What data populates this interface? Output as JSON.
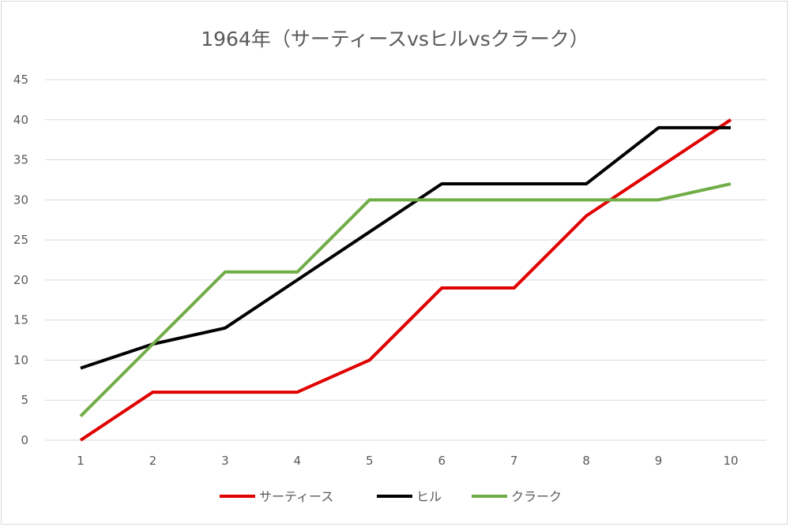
{
  "chart_data": {
    "type": "line",
    "title": "1964年（サーティースvsヒルvsクラーク）",
    "xlabel": "",
    "ylabel": "",
    "x": [
      1,
      2,
      3,
      4,
      5,
      6,
      7,
      8,
      9,
      10
    ],
    "ylim": [
      0,
      45
    ],
    "yticks": [
      0,
      5,
      10,
      15,
      20,
      25,
      30,
      35,
      40,
      45
    ],
    "grid": true,
    "legend_position": "bottom",
    "series": [
      {
        "name": "サーティース",
        "color": "#e00000",
        "values": [
          0,
          6,
          6,
          6,
          10,
          19,
          19,
          28,
          34,
          40
        ]
      },
      {
        "name": "ヒル",
        "color": "#000000",
        "values": [
          9,
          12,
          14,
          20,
          26,
          32,
          32,
          32,
          39,
          39
        ]
      },
      {
        "name": "クラーク",
        "color": "#70ad47",
        "values": [
          3,
          12,
          21,
          21,
          30,
          30,
          30,
          30,
          30,
          32
        ]
      }
    ]
  }
}
